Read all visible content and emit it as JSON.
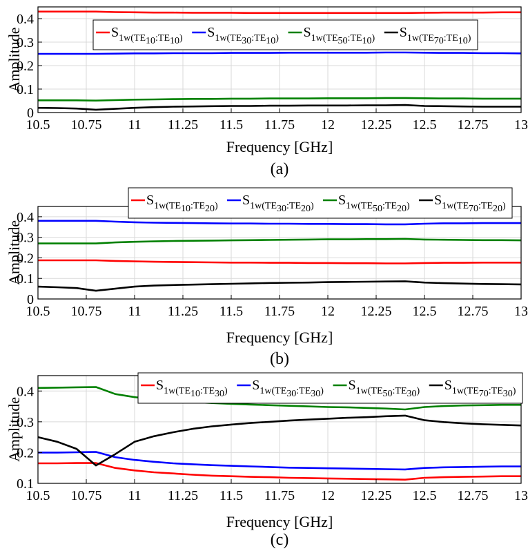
{
  "chart_data": [
    {
      "type": "line",
      "caption": "(a)",
      "xlabel": "Frequency [GHz]",
      "ylabel": "Amplitude",
      "xlim": [
        10.5,
        13
      ],
      "ylim": [
        0,
        0.45
      ],
      "xticks": [
        "10.5",
        "10.75",
        "11",
        "11.25",
        "11.5",
        "11.75",
        "12",
        "12.25",
        "12.5",
        "12.75",
        "13"
      ],
      "yticks": [
        "0",
        "0.1",
        "0.2",
        "0.3",
        "0.4"
      ],
      "grid": true,
      "legend": "top-right",
      "x": [
        10.5,
        10.6,
        10.7,
        10.8,
        10.9,
        11,
        11.1,
        11.2,
        11.3,
        11.4,
        11.5,
        11.6,
        11.7,
        11.8,
        11.9,
        12,
        12.1,
        12.2,
        12.3,
        12.4,
        12.5,
        12.6,
        12.7,
        12.8,
        12.9,
        13
      ],
      "series": [
        {
          "name": "S1w(TE10:TE10)",
          "sub1": "1w(TE",
          "sub2": "10",
          "mid": ":TE",
          "sub3": "10",
          "end": ")",
          "color": "#ff0000",
          "values": [
            0.43,
            0.43,
            0.43,
            0.43,
            0.428,
            0.427,
            0.426,
            0.426,
            0.425,
            0.425,
            0.425,
            0.424,
            0.424,
            0.424,
            0.424,
            0.424,
            0.424,
            0.424,
            0.424,
            0.424,
            0.425,
            0.426,
            0.426,
            0.426,
            0.427,
            0.427
          ]
        },
        {
          "name": "S1w(TE30:TE10)",
          "sub1": "1w(TE",
          "sub2": "30",
          "mid": ":TE",
          "sub3": "10",
          "end": ")",
          "color": "#0000ff",
          "values": [
            0.25,
            0.25,
            0.25,
            0.25,
            0.251,
            0.252,
            0.252,
            0.253,
            0.253,
            0.253,
            0.254,
            0.254,
            0.254,
            0.255,
            0.255,
            0.255,
            0.255,
            0.255,
            0.256,
            0.256,
            0.255,
            0.254,
            0.254,
            0.253,
            0.253,
            0.252
          ]
        },
        {
          "name": "S1w(TE50:TE10)",
          "sub1": "1w(TE",
          "sub2": "50",
          "mid": ":TE",
          "sub3": "10",
          "end": ")",
          "color": "#008000",
          "values": [
            0.052,
            0.052,
            0.052,
            0.051,
            0.053,
            0.055,
            0.056,
            0.057,
            0.058,
            0.058,
            0.059,
            0.059,
            0.06,
            0.06,
            0.06,
            0.061,
            0.061,
            0.061,
            0.062,
            0.062,
            0.061,
            0.06,
            0.06,
            0.059,
            0.059,
            0.059
          ]
        },
        {
          "name": "S1w(TE70:TE10)",
          "sub1": "1w(TE",
          "sub2": "70",
          "mid": ":TE",
          "sub3": "10",
          "end": ")",
          "color": "#000000",
          "values": [
            0.02,
            0.019,
            0.017,
            0.012,
            0.016,
            0.02,
            0.023,
            0.025,
            0.026,
            0.027,
            0.028,
            0.028,
            0.029,
            0.029,
            0.03,
            0.03,
            0.03,
            0.031,
            0.031,
            0.032,
            0.028,
            0.027,
            0.026,
            0.025,
            0.025,
            0.025
          ]
        }
      ]
    },
    {
      "type": "line",
      "caption": "(b)",
      "xlabel": "Frequency [GHz]",
      "ylabel": "Amplitude",
      "xlim": [
        10.5,
        13
      ],
      "ylim": [
        0,
        0.45
      ],
      "xticks": [
        "10.5",
        "10.75",
        "11",
        "11.25",
        "11.5",
        "11.75",
        "12",
        "12.25",
        "12.5",
        "12.75",
        "13"
      ],
      "yticks": [
        "0",
        "0.1",
        "0.2",
        "0.3",
        "0.4"
      ],
      "grid": true,
      "legend": "top-right",
      "x": [
        10.5,
        10.6,
        10.7,
        10.8,
        10.9,
        11,
        11.1,
        11.2,
        11.3,
        11.4,
        11.5,
        11.6,
        11.7,
        11.8,
        11.9,
        12,
        12.1,
        12.2,
        12.3,
        12.4,
        12.5,
        12.6,
        12.7,
        12.8,
        12.9,
        13
      ],
      "series": [
        {
          "name": "S1w(TE10:TE20)",
          "sub1": "1w(TE",
          "sub2": "10",
          "mid": ":TE",
          "sub3": "20",
          "end": ")",
          "color": "#ff0000",
          "values": [
            0.188,
            0.188,
            0.188,
            0.188,
            0.185,
            0.183,
            0.181,
            0.18,
            0.179,
            0.178,
            0.177,
            0.177,
            0.176,
            0.176,
            0.175,
            0.175,
            0.174,
            0.174,
            0.173,
            0.173,
            0.175,
            0.176,
            0.176,
            0.177,
            0.177,
            0.177
          ]
        },
        {
          "name": "S1w(TE30:TE20)",
          "sub1": "1w(TE",
          "sub2": "30",
          "mid": ":TE",
          "sub3": "20",
          "end": ")",
          "color": "#0000ff",
          "values": [
            0.38,
            0.38,
            0.38,
            0.38,
            0.376,
            0.373,
            0.371,
            0.37,
            0.369,
            0.368,
            0.367,
            0.367,
            0.366,
            0.366,
            0.365,
            0.365,
            0.364,
            0.364,
            0.363,
            0.363,
            0.366,
            0.368,
            0.368,
            0.369,
            0.369,
            0.369
          ]
        },
        {
          "name": "S1w(TE50:TE20)",
          "sub1": "1w(TE",
          "sub2": "50",
          "mid": ":TE",
          "sub3": "20",
          "end": ")",
          "color": "#008000",
          "values": [
            0.27,
            0.27,
            0.27,
            0.27,
            0.275,
            0.278,
            0.28,
            0.282,
            0.283,
            0.284,
            0.285,
            0.286,
            0.287,
            0.288,
            0.289,
            0.29,
            0.29,
            0.291,
            0.291,
            0.292,
            0.289,
            0.288,
            0.287,
            0.286,
            0.286,
            0.285
          ]
        },
        {
          "name": "S1w(TE70:TE20)",
          "sub1": "1w(TE",
          "sub2": "70",
          "mid": ":TE",
          "sub3": "20",
          "end": ")",
          "color": "#000000",
          "values": [
            0.06,
            0.057,
            0.053,
            0.04,
            0.05,
            0.06,
            0.065,
            0.068,
            0.07,
            0.072,
            0.074,
            0.076,
            0.078,
            0.079,
            0.08,
            0.082,
            0.083,
            0.084,
            0.085,
            0.086,
            0.08,
            0.077,
            0.075,
            0.073,
            0.072,
            0.071
          ]
        }
      ]
    },
    {
      "type": "line",
      "caption": "(c)",
      "xlabel": "Frequency [GHz]",
      "ylabel": "Amplitude",
      "xlim": [
        10.5,
        13
      ],
      "ylim": [
        0.1,
        0.45
      ],
      "xticks": [
        "10.5",
        "10.75",
        "11",
        "11.25",
        "11.5",
        "11.75",
        "12",
        "12.25",
        "12.5",
        "12.75",
        "13"
      ],
      "yticks": [
        "0.1",
        "0.2",
        "0.3",
        "0.4"
      ],
      "grid": true,
      "legend": "top-right",
      "x": [
        10.5,
        10.6,
        10.7,
        10.8,
        10.9,
        11,
        11.1,
        11.2,
        11.3,
        11.4,
        11.5,
        11.6,
        11.7,
        11.8,
        11.9,
        12,
        12.1,
        12.2,
        12.3,
        12.4,
        12.5,
        12.6,
        12.7,
        12.8,
        12.9,
        13
      ],
      "series": [
        {
          "name": "S1w(TE10:TE30)",
          "sub1": "1w(TE",
          "sub2": "10",
          "mid": ":TE",
          "sub3": "30",
          "end": ")",
          "color": "#ff0000",
          "values": [
            0.165,
            0.165,
            0.166,
            0.166,
            0.15,
            0.142,
            0.136,
            0.132,
            0.128,
            0.125,
            0.123,
            0.121,
            0.12,
            0.118,
            0.117,
            0.116,
            0.115,
            0.114,
            0.113,
            0.112,
            0.118,
            0.12,
            0.121,
            0.122,
            0.123,
            0.123
          ]
        },
        {
          "name": "S1w(TE30:TE30)",
          "sub1": "1w(TE",
          "sub2": "30",
          "mid": ":TE",
          "sub3": "30",
          "end": ")",
          "color": "#0000ff",
          "values": [
            0.2,
            0.2,
            0.201,
            0.202,
            0.185,
            0.176,
            0.17,
            0.165,
            0.162,
            0.159,
            0.157,
            0.155,
            0.153,
            0.151,
            0.15,
            0.149,
            0.148,
            0.147,
            0.146,
            0.145,
            0.15,
            0.152,
            0.153,
            0.154,
            0.155,
            0.155
          ]
        },
        {
          "name": "S1w(TE50:TE30)",
          "sub1": "1w(TE",
          "sub2": "50",
          "mid": ":TE",
          "sub3": "30",
          "end": ")",
          "color": "#008000",
          "values": [
            0.41,
            0.411,
            0.412,
            0.413,
            0.39,
            0.38,
            0.373,
            0.368,
            0.364,
            0.361,
            0.358,
            0.356,
            0.354,
            0.352,
            0.35,
            0.348,
            0.347,
            0.345,
            0.343,
            0.34,
            0.348,
            0.351,
            0.353,
            0.354,
            0.355,
            0.355
          ]
        },
        {
          "name": "S1w(TE70:TE30)",
          "sub1": "1w(TE",
          "sub2": "70",
          "mid": ":TE",
          "sub3": "30",
          "end": ")",
          "color": "#000000",
          "values": [
            0.25,
            0.235,
            0.212,
            0.158,
            0.195,
            0.235,
            0.253,
            0.266,
            0.277,
            0.285,
            0.291,
            0.296,
            0.3,
            0.304,
            0.307,
            0.31,
            0.313,
            0.315,
            0.318,
            0.32,
            0.305,
            0.299,
            0.295,
            0.292,
            0.29,
            0.288
          ]
        }
      ]
    }
  ]
}
